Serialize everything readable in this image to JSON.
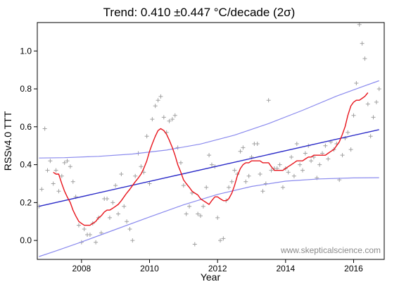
{
  "chart_data": {
    "type": "scatter",
    "title": "Trend: 0.410 ±0.447 °C/decade (2σ)",
    "xlabel": "Year",
    "ylabel": "RSSv4.0 TTT",
    "xlim": [
      2006.7,
      2016.9
    ],
    "ylim": [
      -0.1,
      1.15
    ],
    "x_ticks": [
      2008,
      2010,
      2012,
      2014,
      2016
    ],
    "y_ticks": [
      0.0,
      0.2,
      0.4,
      0.6,
      0.8,
      1.0
    ],
    "x_tick_labels": [
      "2008",
      "2010",
      "2012",
      "2014",
      "2016"
    ],
    "y_tick_labels": [
      "0.0",
      "0.2",
      "0.4",
      "0.6",
      "0.8",
      "1.0"
    ],
    "grid": false,
    "watermark": "www.skepticalscience.com",
    "colors": {
      "points": "#a0a0a0",
      "smooth": "#e8141c",
      "trend": "#2b2bc8",
      "band": "#8a8aee",
      "frame": "#000000"
    },
    "monthly_points": [
      [
        2006.75,
        0.18
      ],
      [
        2006.83,
        0.27
      ],
      [
        2006.92,
        0.59
      ],
      [
        2007.0,
        0.37
      ],
      [
        2007.08,
        0.42
      ],
      [
        2007.17,
        0.3
      ],
      [
        2007.25,
        0.37
      ],
      [
        2007.33,
        0.26
      ],
      [
        2007.42,
        0.34
      ],
      [
        2007.5,
        0.41
      ],
      [
        2007.58,
        0.42
      ],
      [
        2007.67,
        0.39
      ],
      [
        2007.75,
        0.31
      ],
      [
        2007.83,
        0.23
      ],
      [
        2007.92,
        0.08
      ],
      [
        2008.0,
        -0.01
      ],
      [
        2008.08,
        0.06
      ],
      [
        2008.17,
        0.03
      ],
      [
        2008.25,
        0.03
      ],
      [
        2008.33,
        0.09
      ],
      [
        2008.42,
        -0.01
      ],
      [
        2008.5,
        0.12
      ],
      [
        2008.58,
        0.04
      ],
      [
        2008.67,
        0.22
      ],
      [
        2008.75,
        0.22
      ],
      [
        2008.83,
        0.12
      ],
      [
        2008.92,
        0.2
      ],
      [
        2009.0,
        0.29
      ],
      [
        2009.08,
        0.14
      ],
      [
        2009.17,
        0.35
      ],
      [
        2009.25,
        0.18
      ],
      [
        2009.33,
        0.1
      ],
      [
        2009.42,
        0.06
      ],
      [
        2009.5,
        0.0
      ],
      [
        2009.58,
        0.34
      ],
      [
        2009.67,
        0.46
      ],
      [
        2009.75,
        0.39
      ],
      [
        2009.83,
        0.36
      ],
      [
        2009.92,
        0.55
      ],
      [
        2010.0,
        0.3
      ],
      [
        2010.08,
        0.64
      ],
      [
        2010.17,
        0.71
      ],
      [
        2010.25,
        0.74
      ],
      [
        2010.33,
        0.76
      ],
      [
        2010.42,
        0.65
      ],
      [
        2010.5,
        0.57
      ],
      [
        2010.58,
        0.63
      ],
      [
        2010.67,
        0.64
      ],
      [
        2010.75,
        0.66
      ],
      [
        2010.83,
        0.49
      ],
      [
        2010.92,
        0.41
      ],
      [
        2011.0,
        0.29
      ],
      [
        2011.08,
        0.14
      ],
      [
        2011.17,
        0.18
      ],
      [
        2011.25,
        0.25
      ],
      [
        2011.33,
        -0.02
      ],
      [
        2011.42,
        0.14
      ],
      [
        2011.5,
        0.13
      ],
      [
        2011.58,
        0.18
      ],
      [
        2011.67,
        0.28
      ],
      [
        2011.75,
        0.45
      ],
      [
        2011.83,
        0.4
      ],
      [
        2011.92,
        0.39
      ],
      [
        2012.0,
        0.12
      ],
      [
        2012.08,
        0.0
      ],
      [
        2012.17,
        0.01
      ],
      [
        2012.25,
        0.21
      ],
      [
        2012.33,
        0.28
      ],
      [
        2012.42,
        0.31
      ],
      [
        2012.5,
        0.37
      ],
      [
        2012.58,
        0.35
      ],
      [
        2012.67,
        0.47
      ],
      [
        2012.75,
        0.49
      ],
      [
        2012.83,
        0.31
      ],
      [
        2012.92,
        0.34
      ],
      [
        2013.0,
        0.44
      ],
      [
        2013.08,
        0.51
      ],
      [
        2013.17,
        0.51
      ],
      [
        2013.25,
        0.35
      ],
      [
        2013.33,
        0.26
      ],
      [
        2013.42,
        0.3
      ],
      [
        2013.5,
        0.74
      ],
      [
        2013.58,
        0.37
      ],
      [
        2013.67,
        0.38
      ],
      [
        2013.75,
        0.38
      ],
      [
        2013.83,
        0.4
      ],
      [
        2013.92,
        0.28
      ],
      [
        2014.0,
        0.38
      ],
      [
        2014.08,
        0.36
      ],
      [
        2014.17,
        0.44
      ],
      [
        2014.25,
        0.34
      ],
      [
        2014.33,
        0.51
      ],
      [
        2014.42,
        0.4
      ],
      [
        2014.5,
        0.37
      ],
      [
        2014.58,
        0.46
      ],
      [
        2014.67,
        0.5
      ],
      [
        2014.75,
        0.42
      ],
      [
        2014.83,
        0.44
      ],
      [
        2014.92,
        0.33
      ],
      [
        2015.0,
        0.4
      ],
      [
        2015.08,
        0.46
      ],
      [
        2015.17,
        0.5
      ],
      [
        2015.25,
        0.43
      ],
      [
        2015.33,
        0.52
      ],
      [
        2015.42,
        0.48
      ],
      [
        2015.5,
        0.51
      ],
      [
        2015.58,
        0.32
      ],
      [
        2015.67,
        0.45
      ],
      [
        2015.75,
        0.54
      ],
      [
        2015.83,
        0.57
      ],
      [
        2015.92,
        0.48
      ],
      [
        2016.0,
        0.66
      ],
      [
        2016.08,
        0.83
      ],
      [
        2016.17,
        1.14
      ],
      [
        2016.25,
        1.04
      ],
      [
        2016.33,
        0.96
      ],
      [
        2016.42,
        0.72
      ],
      [
        2016.5,
        0.55
      ],
      [
        2016.58,
        0.65
      ],
      [
        2016.67,
        0.73
      ],
      [
        2016.75,
        0.8
      ]
    ],
    "smoothed_series": [
      [
        2007.17,
        0.36
      ],
      [
        2007.25,
        0.35
      ],
      [
        2007.33,
        0.35
      ],
      [
        2007.42,
        0.3
      ],
      [
        2007.5,
        0.26
      ],
      [
        2007.58,
        0.23
      ],
      [
        2007.67,
        0.2
      ],
      [
        2007.75,
        0.16
      ],
      [
        2007.83,
        0.13
      ],
      [
        2007.92,
        0.1
      ],
      [
        2008.0,
        0.09
      ],
      [
        2008.08,
        0.08
      ],
      [
        2008.17,
        0.08
      ],
      [
        2008.25,
        0.08
      ],
      [
        2008.33,
        0.09
      ],
      [
        2008.42,
        0.1
      ],
      [
        2008.5,
        0.12
      ],
      [
        2008.58,
        0.13
      ],
      [
        2008.67,
        0.15
      ],
      [
        2008.75,
        0.16
      ],
      [
        2008.83,
        0.16
      ],
      [
        2008.92,
        0.17
      ],
      [
        2009.0,
        0.18
      ],
      [
        2009.08,
        0.19
      ],
      [
        2009.17,
        0.21
      ],
      [
        2009.25,
        0.23
      ],
      [
        2009.33,
        0.25
      ],
      [
        2009.42,
        0.27
      ],
      [
        2009.5,
        0.29
      ],
      [
        2009.58,
        0.31
      ],
      [
        2009.67,
        0.33
      ],
      [
        2009.75,
        0.35
      ],
      [
        2009.83,
        0.38
      ],
      [
        2009.92,
        0.42
      ],
      [
        2010.0,
        0.47
      ],
      [
        2010.08,
        0.51
      ],
      [
        2010.17,
        0.55
      ],
      [
        2010.25,
        0.58
      ],
      [
        2010.33,
        0.59
      ],
      [
        2010.42,
        0.58
      ],
      [
        2010.5,
        0.56
      ],
      [
        2010.58,
        0.53
      ],
      [
        2010.67,
        0.49
      ],
      [
        2010.75,
        0.45
      ],
      [
        2010.83,
        0.4
      ],
      [
        2010.92,
        0.36
      ],
      [
        2011.0,
        0.32
      ],
      [
        2011.08,
        0.3
      ],
      [
        2011.17,
        0.28
      ],
      [
        2011.25,
        0.26
      ],
      [
        2011.33,
        0.25
      ],
      [
        2011.42,
        0.24
      ],
      [
        2011.5,
        0.22
      ],
      [
        2011.58,
        0.21
      ],
      [
        2011.67,
        0.2
      ],
      [
        2011.75,
        0.19
      ],
      [
        2011.83,
        0.21
      ],
      [
        2011.92,
        0.23
      ],
      [
        2012.0,
        0.23
      ],
      [
        2012.08,
        0.22
      ],
      [
        2012.17,
        0.21
      ],
      [
        2012.25,
        0.21
      ],
      [
        2012.33,
        0.22
      ],
      [
        2012.42,
        0.25
      ],
      [
        2012.5,
        0.29
      ],
      [
        2012.58,
        0.34
      ],
      [
        2012.67,
        0.38
      ],
      [
        2012.75,
        0.4
      ],
      [
        2012.83,
        0.41
      ],
      [
        2012.92,
        0.41
      ],
      [
        2013.0,
        0.42
      ],
      [
        2013.08,
        0.42
      ],
      [
        2013.17,
        0.42
      ],
      [
        2013.25,
        0.42
      ],
      [
        2013.33,
        0.41
      ],
      [
        2013.42,
        0.41
      ],
      [
        2013.5,
        0.41
      ],
      [
        2013.58,
        0.39
      ],
      [
        2013.67,
        0.37
      ],
      [
        2013.75,
        0.37
      ],
      [
        2013.83,
        0.37
      ],
      [
        2013.92,
        0.37
      ],
      [
        2014.0,
        0.38
      ],
      [
        2014.08,
        0.39
      ],
      [
        2014.17,
        0.4
      ],
      [
        2014.25,
        0.41
      ],
      [
        2014.33,
        0.42
      ],
      [
        2014.42,
        0.42
      ],
      [
        2014.5,
        0.42
      ],
      [
        2014.58,
        0.43
      ],
      [
        2014.67,
        0.44
      ],
      [
        2014.75,
        0.44
      ],
      [
        2014.83,
        0.45
      ],
      [
        2014.92,
        0.45
      ],
      [
        2015.0,
        0.45
      ],
      [
        2015.08,
        0.45
      ],
      [
        2015.17,
        0.45
      ],
      [
        2015.25,
        0.46
      ],
      [
        2015.33,
        0.47
      ],
      [
        2015.42,
        0.48
      ],
      [
        2015.5,
        0.5
      ],
      [
        2015.58,
        0.52
      ],
      [
        2015.67,
        0.56
      ],
      [
        2015.75,
        0.6
      ],
      [
        2015.83,
        0.66
      ],
      [
        2015.92,
        0.71
      ],
      [
        2016.0,
        0.73
      ],
      [
        2016.08,
        0.74
      ],
      [
        2016.17,
        0.74
      ],
      [
        2016.25,
        0.75
      ],
      [
        2016.33,
        0.76
      ],
      [
        2016.42,
        0.78
      ]
    ],
    "trend_line": [
      [
        2006.75,
        0.18
      ],
      [
        2016.75,
        0.585
      ]
    ],
    "upper_band": [
      [
        2006.75,
        0.435
      ],
      [
        2007.5,
        0.437
      ],
      [
        2008.5,
        0.444
      ],
      [
        2009.5,
        0.456
      ],
      [
        2010.5,
        0.477
      ],
      [
        2011.5,
        0.509
      ],
      [
        2012.5,
        0.556
      ],
      [
        2013.5,
        0.617
      ],
      [
        2014.5,
        0.687
      ],
      [
        2015.5,
        0.762
      ],
      [
        2016.25,
        0.811
      ],
      [
        2016.75,
        0.843
      ]
    ],
    "lower_band": [
      [
        2006.75,
        -0.085
      ],
      [
        2007.25,
        -0.055
      ],
      [
        2008.0,
        -0.008
      ],
      [
        2009.0,
        0.058
      ],
      [
        2010.0,
        0.124
      ],
      [
        2011.0,
        0.188
      ],
      [
        2012.0,
        0.243
      ],
      [
        2013.0,
        0.285
      ],
      [
        2014.0,
        0.313
      ],
      [
        2015.0,
        0.325
      ],
      [
        2016.0,
        0.33
      ],
      [
        2016.75,
        0.331
      ]
    ]
  }
}
